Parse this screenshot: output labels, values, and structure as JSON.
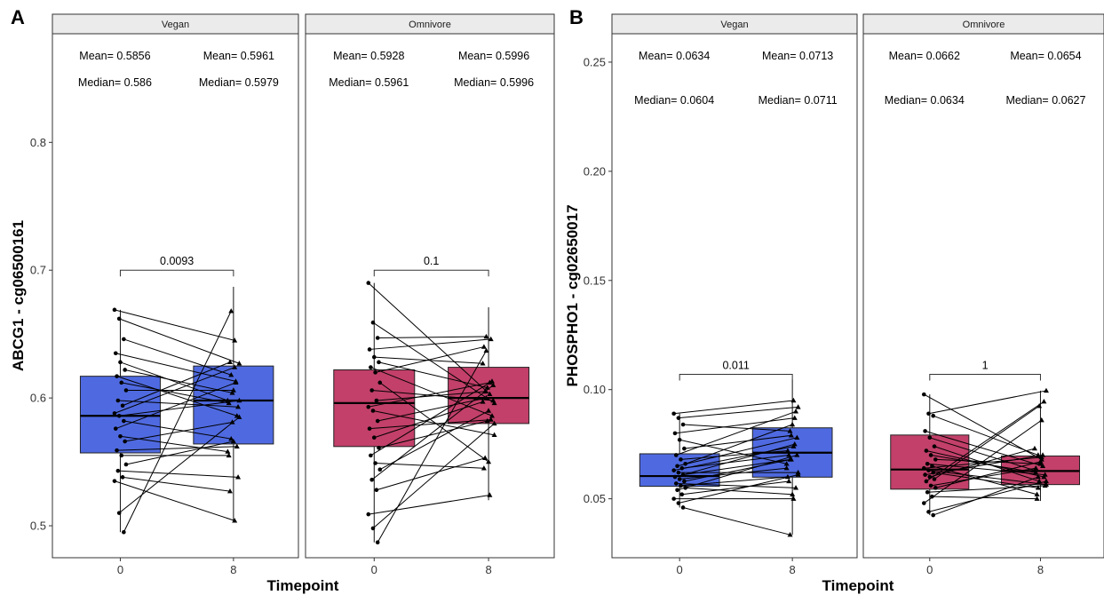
{
  "chart_data": [
    {
      "panel": "A",
      "type": "box",
      "ylabel": "ABCG1 - cg06500161",
      "xlabel": "Timepoint",
      "ylim": [
        0.475,
        0.885
      ],
      "yticks": [
        0.5,
        0.6,
        0.7,
        0.8
      ],
      "categories": [
        "0",
        "8"
      ],
      "facets": [
        {
          "label": "Vegan",
          "color": "#4f6ae0",
          "mean_labels": [
            "Mean= 0.5856",
            "Mean= 0.5961"
          ],
          "median_labels": [
            "Median= 0.586",
            "Median= 0.5979"
          ],
          "pvalue": "0.0093",
          "bracket_y": 0.7,
          "boxes": [
            {
              "q1": 0.557,
              "median": 0.586,
              "q3": 0.617,
              "lower": 0.495,
              "upper": 0.669
            },
            {
              "q1": 0.564,
              "median": 0.598,
              "q3": 0.625,
              "lower": 0.504,
              "upper": 0.687
            }
          ],
          "pairs": [
            [
              0.669,
              0.645
            ],
            [
              0.662,
              0.627
            ],
            [
              0.646,
              0.618
            ],
            [
              0.635,
              0.613
            ],
            [
              0.628,
              0.598
            ],
            [
              0.622,
              0.604
            ],
            [
              0.617,
              0.586
            ],
            [
              0.612,
              0.596
            ],
            [
              0.606,
              0.606
            ],
            [
              0.598,
              0.593
            ],
            [
              0.594,
              0.628
            ],
            [
              0.588,
              0.624
            ],
            [
              0.586,
              0.598
            ],
            [
              0.582,
              0.568
            ],
            [
              0.576,
              0.612
            ],
            [
              0.57,
              0.558
            ],
            [
              0.566,
              0.581
            ],
            [
              0.559,
              0.562
            ],
            [
              0.555,
              0.555
            ],
            [
              0.548,
              0.566
            ],
            [
              0.543,
              0.538
            ],
            [
              0.538,
              0.527
            ],
            [
              0.535,
              0.504
            ],
            [
              0.51,
              0.585
            ],
            [
              0.495,
              0.668
            ]
          ]
        },
        {
          "label": "Omnivore",
          "color": "#c2406a",
          "mean_labels": [
            "Mean= 0.5928",
            "Mean= 0.5996"
          ],
          "median_labels": [
            "Median= 0.5961",
            "Median= 0.5996"
          ],
          "pvalue": "0.1",
          "bracket_y": 0.7,
          "boxes": [
            {
              "q1": 0.562,
              "median": 0.596,
              "q3": 0.622,
              "lower": 0.487,
              "upper": 0.69
            },
            {
              "q1": 0.58,
              "median": 0.6,
              "q3": 0.624,
              "lower": 0.52,
              "upper": 0.671
            }
          ],
          "pairs": [
            [
              0.69,
              0.603
            ],
            [
              0.659,
              0.596
            ],
            [
              0.647,
              0.648
            ],
            [
              0.638,
              0.646
            ],
            [
              0.632,
              0.627
            ],
            [
              0.628,
              0.608
            ],
            [
              0.624,
              0.586
            ],
            [
              0.62,
              0.64
            ],
            [
              0.612,
              0.55
            ],
            [
              0.606,
              0.598
            ],
            [
              0.598,
              0.605
            ],
            [
              0.593,
              0.612
            ],
            [
              0.59,
              0.571
            ],
            [
              0.582,
              0.6
            ],
            [
              0.576,
              0.583
            ],
            [
              0.569,
              0.597
            ],
            [
              0.561,
              0.582
            ],
            [
              0.555,
              0.613
            ],
            [
              0.549,
              0.545
            ],
            [
              0.544,
              0.59
            ],
            [
              0.536,
              0.61
            ],
            [
              0.528,
              0.553
            ],
            [
              0.509,
              0.524
            ],
            [
              0.498,
              0.58
            ],
            [
              0.487,
              0.637
            ]
          ]
        }
      ]
    },
    {
      "panel": "B",
      "type": "box",
      "ylabel": "PHOSPHO1 - cg02650017",
      "xlabel": "Timepoint",
      "ylim": [
        0.023,
        0.263
      ],
      "yticks": [
        0.05,
        0.1,
        0.15,
        0.2,
        0.25
      ],
      "categories": [
        "0",
        "8"
      ],
      "facets": [
        {
          "label": "Vegan",
          "color": "#4f6ae0",
          "mean_labels": [
            "Mean= 0.0634",
            "Mean= 0.0713"
          ],
          "median_labels": [
            "Median= 0.0604",
            "Median= 0.0711"
          ],
          "pvalue": "0.011",
          "bracket_y": 0.107,
          "boxes": [
            {
              "q1": 0.0557,
              "median": 0.0604,
              "q3": 0.0706,
              "lower": 0.046,
              "upper": 0.089
            },
            {
              "q1": 0.0599,
              "median": 0.0711,
              "q3": 0.0825,
              "lower": 0.0335,
              "upper": 0.1045
            }
          ],
          "pairs": [
            [
              0.089,
              0.095
            ],
            [
              0.087,
              0.092
            ],
            [
              0.084,
              0.081
            ],
            [
              0.08,
              0.087
            ],
            [
              0.077,
              0.066
            ],
            [
              0.073,
              0.079
            ],
            [
              0.07,
              0.09
            ],
            [
              0.068,
              0.072
            ],
            [
              0.066,
              0.084
            ],
            [
              0.065,
              0.078
            ],
            [
              0.064,
              0.07
            ],
            [
              0.063,
              0.074
            ],
            [
              0.062,
              0.062
            ],
            [
              0.061,
              0.068
            ],
            [
              0.06,
              0.075
            ],
            [
              0.059,
              0.064
            ],
            [
              0.058,
              0.068
            ],
            [
              0.057,
              0.055
            ],
            [
              0.056,
              0.06
            ],
            [
              0.055,
              0.052
            ],
            [
              0.054,
              0.07
            ],
            [
              0.052,
              0.058
            ],
            [
              0.05,
              0.05
            ],
            [
              0.048,
              0.061
            ],
            [
              0.046,
              0.0335
            ]
          ]
        },
        {
          "label": "Omnivore",
          "color": "#c2406a",
          "mean_labels": [
            "Mean= 0.0662",
            "Mean= 0.0654"
          ],
          "median_labels": [
            "Median= 0.0634",
            "Median= 0.0627"
          ],
          "pvalue": "1",
          "bracket_y": 0.107,
          "boxes": [
            {
              "q1": 0.0544,
              "median": 0.0634,
              "q3": 0.0792,
              "lower": 0.0425,
              "upper": 0.0978
            },
            {
              "q1": 0.0565,
              "median": 0.0627,
              "q3": 0.0696,
              "lower": 0.049,
              "upper": 0.0995
            }
          ],
          "pairs": [
            [
              0.0978,
              0.068
            ],
            [
              0.089,
              0.0995
            ],
            [
              0.088,
              0.07
            ],
            [
              0.081,
              0.065
            ],
            [
              0.078,
              0.063
            ],
            [
              0.074,
              0.058
            ],
            [
              0.072,
              0.06
            ],
            [
              0.07,
              0.062
            ],
            [
              0.068,
              0.066
            ],
            [
              0.066,
              0.061
            ],
            [
              0.065,
              0.052
            ],
            [
              0.064,
              0.069
            ],
            [
              0.063,
              0.0565
            ],
            [
              0.062,
              0.055
            ],
            [
              0.061,
              0.07
            ],
            [
              0.06,
              0.073
            ],
            [
              0.059,
              0.0925
            ],
            [
              0.058,
              0.0945
            ],
            [
              0.056,
              0.064
            ],
            [
              0.055,
              0.067
            ],
            [
              0.053,
              0.056
            ],
            [
              0.051,
              0.05
            ],
            [
              0.048,
              0.086
            ],
            [
              0.044,
              0.058
            ],
            [
              0.0425,
              0.06
            ]
          ]
        }
      ]
    }
  ]
}
